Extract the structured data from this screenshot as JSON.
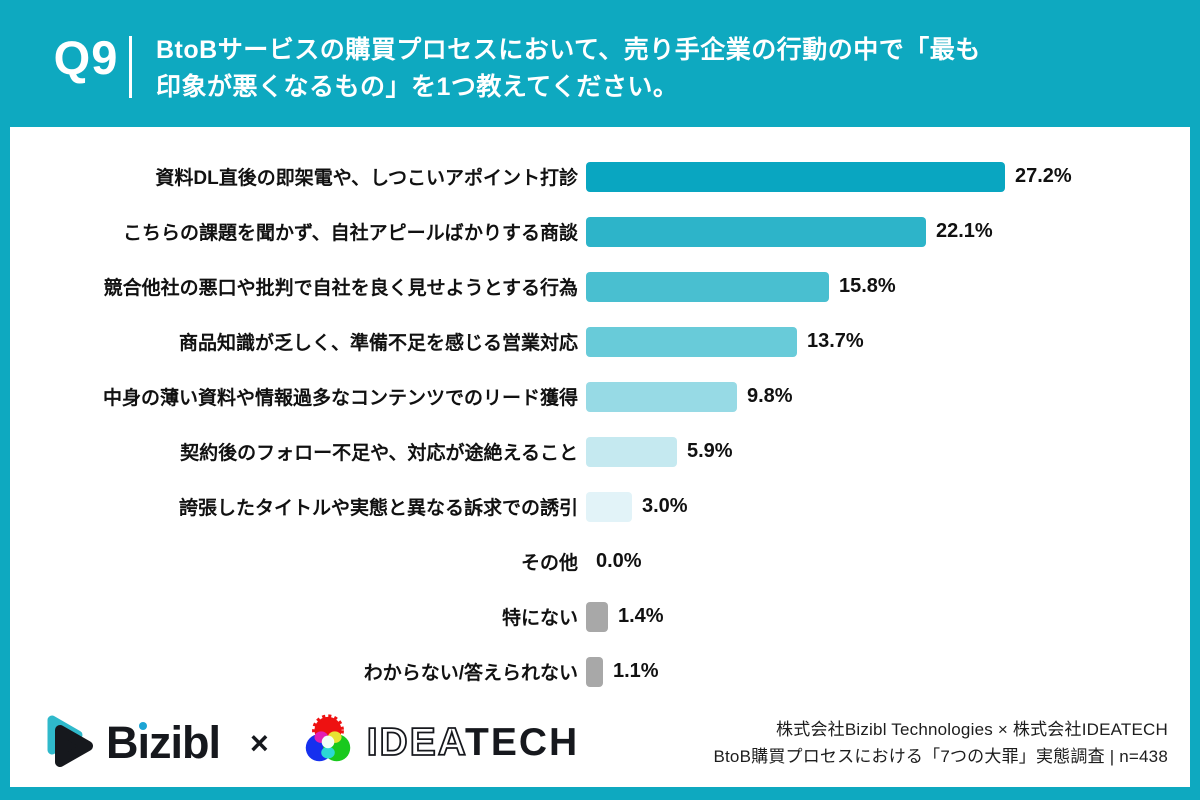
{
  "header": {
    "question_number": "Q9",
    "title_line1": "BtoBサービスの購買プロセスにおいて、売り手企業の行動の中で「最も",
    "title_line2": "印象が悪くなるもの」を1つ教えてください。"
  },
  "chart_data": {
    "type": "bar",
    "orientation": "horizontal",
    "title": "BtoBサービスの購買プロセスにおいて、売り手企業の行動の中で「最も印象が悪くなるもの」を1つ教えてください。",
    "unit": "%",
    "xlim": [
      0,
      30
    ],
    "grid": false,
    "legend": false,
    "categories": [
      "資料DL直後の即架電や、しつこいアポイント打診",
      "こちらの課題を聞かず、自社アピールばかりする商談",
      "競合他社の悪口や批判で自社を良く見せようとする行為",
      "商品知識が乏しく、準備不足を感じる営業対応",
      "中身の薄い資料や情報過多なコンテンツでのリード獲得",
      "契約後のフォロー不足や、対応が途絶えること",
      "誇張したタイトルや実態と異なる訴求での誘引",
      "その他",
      "特にない",
      "わからない/答えられない"
    ],
    "values": [
      27.2,
      22.1,
      15.8,
      13.7,
      9.8,
      5.9,
      3.0,
      0.0,
      1.4,
      1.1
    ],
    "value_labels": [
      "27.2%",
      "22.1%",
      "15.8%",
      "13.7%",
      "9.8%",
      "5.9%",
      "3.0%",
      "0.0%",
      "1.4%",
      "1.1%"
    ],
    "bar_colors": [
      "#09A6C1",
      "#2DB4C9",
      "#49BFD0",
      "#68CBD9",
      "#97DAE5",
      "#C5E9F0",
      "#E2F3F8",
      "transparent",
      "#A8A8A8",
      "#A8A8A8"
    ]
  },
  "footer": {
    "bizibl_logo_text": "Bizibl",
    "separator": "×",
    "ideatech_logo_text_outline": "IDEA",
    "ideatech_logo_text_solid": "TECH",
    "attribution_line1": "株式会社Bizibl Technologies × 株式会社IDEATECH",
    "attribution_line2": "BtoB購買プロセスにおける「7つの大罪」実態調査 | n=438"
  },
  "colors": {
    "frame_teal": "#0EA9C0",
    "panel_white": "#FFFFFF",
    "text_dark": "#111111",
    "header_text": "#FFFFFF",
    "gray_bar": "#A8A8A8",
    "bizibl_dot_teal": "#1CA4D4"
  }
}
